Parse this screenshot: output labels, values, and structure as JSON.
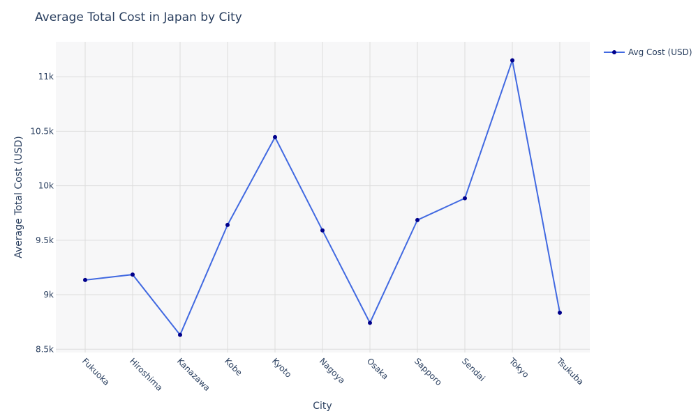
{
  "chart_data": {
    "type": "line",
    "title": "Average Total Cost in Japan by City",
    "xlabel": "City",
    "ylabel": "Average Total Cost (USD)",
    "categories": [
      "Fukuoka",
      "Hiroshima",
      "Kanazawa",
      "Kobe",
      "Kyoto",
      "Nagoya",
      "Osaka",
      "Sapporo",
      "Sendai",
      "Tokyo",
      "Tsukuba"
    ],
    "series": [
      {
        "name": "Avg Cost (USD)",
        "values": [
          9135,
          9185,
          8632,
          9640,
          10445,
          9590,
          8742,
          9685,
          9885,
          11150,
          8835
        ]
      }
    ],
    "ylim": [
      8470,
      11320
    ],
    "yticks": [
      8500,
      9000,
      9500,
      10000,
      10500,
      11000
    ],
    "ytick_labels": [
      "8.5k",
      "9k",
      "9.5k",
      "10k",
      "10.5k",
      "11k"
    ],
    "grid": true,
    "legend": "top-right",
    "colors": {
      "line": "#4169e1",
      "marker": "#00008b",
      "plot_bg": "#f7f7f8",
      "grid": "#dcdcdc",
      "text": "#2a3f5f"
    }
  }
}
